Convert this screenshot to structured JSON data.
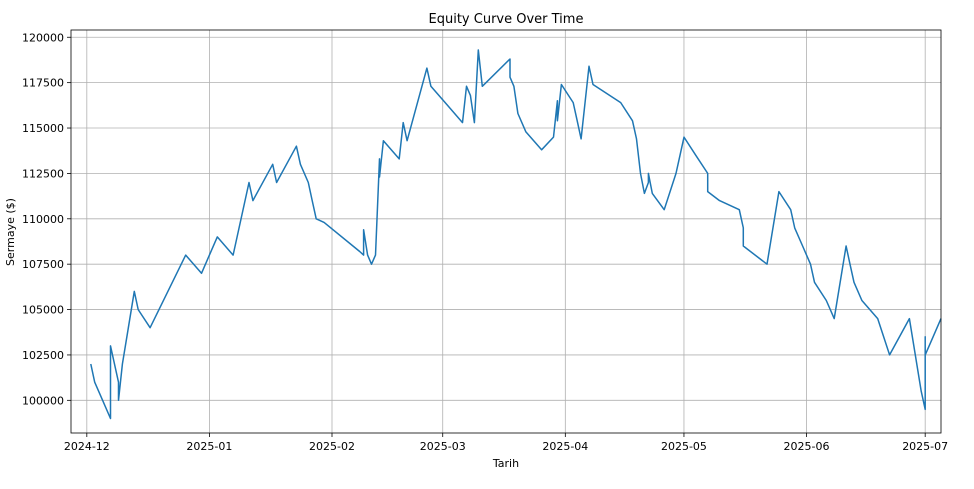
{
  "chart_data": {
    "type": "line",
    "title": "Equity Curve Over Time",
    "xlabel": "Tarih",
    "ylabel": "Sermaye ($)",
    "grid": true,
    "xlim": [
      "2024-11-27",
      "2025-07-05"
    ],
    "ylim": [
      98200,
      120400
    ],
    "xticks": [
      {
        "date": "2024-12-01",
        "label": "2024-12"
      },
      {
        "date": "2025-01-01",
        "label": "2025-01"
      },
      {
        "date": "2025-02-01",
        "label": "2025-02"
      },
      {
        "date": "2025-03-01",
        "label": "2025-03"
      },
      {
        "date": "2025-04-01",
        "label": "2025-04"
      },
      {
        "date": "2025-05-01",
        "label": "2025-05"
      },
      {
        "date": "2025-06-01",
        "label": "2025-06"
      },
      {
        "date": "2025-07-01",
        "label": "2025-07"
      }
    ],
    "yticks": [
      {
        "value": 100000,
        "label": "100000"
      },
      {
        "value": 102500,
        "label": "102500"
      },
      {
        "value": 105000,
        "label": "105000"
      },
      {
        "value": 107500,
        "label": "107500"
      },
      {
        "value": 110000,
        "label": "110000"
      },
      {
        "value": 112500,
        "label": "112500"
      },
      {
        "value": 115000,
        "label": "115000"
      },
      {
        "value": 117500,
        "label": "117500"
      },
      {
        "value": 120000,
        "label": "120000"
      }
    ],
    "series": [
      {
        "color": "#1f77b4",
        "points": [
          [
            "2024-12-02",
            102000
          ],
          [
            "2024-12-03",
            101000
          ],
          [
            "2024-12-05",
            100000
          ],
          [
            "2024-12-07",
            99000
          ],
          [
            "2024-12-07",
            103000
          ],
          [
            "2024-12-09",
            101000
          ],
          [
            "2024-12-09",
            100000
          ],
          [
            "2024-12-10",
            102000
          ],
          [
            "2024-12-13",
            106000
          ],
          [
            "2024-12-14",
            105000
          ],
          [
            "2024-12-17",
            104000
          ],
          [
            "2024-12-26",
            108000
          ],
          [
            "2024-12-30",
            107000
          ],
          [
            "2025-01-03",
            109000
          ],
          [
            "2025-01-07",
            108000
          ],
          [
            "2025-01-11",
            112000
          ],
          [
            "2025-01-12",
            111000
          ],
          [
            "2025-01-17",
            113000
          ],
          [
            "2025-01-18",
            112000
          ],
          [
            "2025-01-23",
            114000
          ],
          [
            "2025-01-24",
            113000
          ],
          [
            "2025-01-26",
            112000
          ],
          [
            "2025-01-27",
            111000
          ],
          [
            "2025-01-28",
            110000
          ],
          [
            "2025-01-30",
            109800
          ],
          [
            "2025-02-08",
            108200
          ],
          [
            "2025-02-09",
            108000
          ],
          [
            "2025-02-09",
            109400
          ],
          [
            "2025-02-10",
            108000
          ],
          [
            "2025-02-11",
            107500
          ],
          [
            "2025-02-12",
            108000
          ],
          [
            "2025-02-13",
            113300
          ],
          [
            "2025-02-13",
            112300
          ],
          [
            "2025-02-14",
            114300
          ],
          [
            "2025-02-18",
            113300
          ],
          [
            "2025-02-19",
            115300
          ],
          [
            "2025-02-20",
            114300
          ],
          [
            "2025-02-25",
            118300
          ],
          [
            "2025-02-26",
            117300
          ],
          [
            "2025-03-02",
            116300
          ],
          [
            "2025-03-06",
            115300
          ],
          [
            "2025-03-07",
            117300
          ],
          [
            "2025-03-08",
            116800
          ],
          [
            "2025-03-09",
            115300
          ],
          [
            "2025-03-10",
            119300
          ],
          [
            "2025-03-11",
            117300
          ],
          [
            "2025-03-18",
            118800
          ],
          [
            "2025-03-18",
            117800
          ],
          [
            "2025-03-19",
            117300
          ],
          [
            "2025-03-20",
            115800
          ],
          [
            "2025-03-22",
            114800
          ],
          [
            "2025-03-26",
            113800
          ],
          [
            "2025-03-29",
            114500
          ],
          [
            "2025-03-30",
            116500
          ],
          [
            "2025-03-30",
            115400
          ],
          [
            "2025-03-31",
            117400
          ],
          [
            "2025-04-03",
            116400
          ],
          [
            "2025-04-04",
            115400
          ],
          [
            "2025-04-05",
            114400
          ],
          [
            "2025-04-07",
            118400
          ],
          [
            "2025-04-08",
            117400
          ],
          [
            "2025-04-15",
            116400
          ],
          [
            "2025-04-18",
            115400
          ],
          [
            "2025-04-19",
            114400
          ],
          [
            "2025-04-20",
            112500
          ],
          [
            "2025-04-21",
            111400
          ],
          [
            "2025-04-22",
            112000
          ],
          [
            "2025-04-22",
            112500
          ],
          [
            "2025-04-23",
            111400
          ],
          [
            "2025-04-26",
            110500
          ],
          [
            "2025-04-29",
            112500
          ],
          [
            "2025-04-30",
            113500
          ],
          [
            "2025-05-01",
            114500
          ],
          [
            "2025-05-04",
            113500
          ],
          [
            "2025-05-07",
            112500
          ],
          [
            "2025-05-07",
            111500
          ],
          [
            "2025-05-10",
            111000
          ],
          [
            "2025-05-15",
            110500
          ],
          [
            "2025-05-16",
            109500
          ],
          [
            "2025-05-16",
            108500
          ],
          [
            "2025-05-22",
            107500
          ],
          [
            "2025-05-25",
            111500
          ],
          [
            "2025-05-28",
            110500
          ],
          [
            "2025-05-29",
            109500
          ],
          [
            "2025-05-31",
            108500
          ],
          [
            "2025-06-02",
            107500
          ],
          [
            "2025-06-03",
            106500
          ],
          [
            "2025-06-06",
            105500
          ],
          [
            "2025-06-08",
            104500
          ],
          [
            "2025-06-11",
            108500
          ],
          [
            "2025-06-12",
            107500
          ],
          [
            "2025-06-13",
            106500
          ],
          [
            "2025-06-15",
            105500
          ],
          [
            "2025-06-19",
            104500
          ],
          [
            "2025-06-22",
            102500
          ],
          [
            "2025-06-27",
            104500
          ],
          [
            "2025-06-30",
            100500
          ],
          [
            "2025-07-01",
            99500
          ],
          [
            "2025-07-01",
            103500
          ],
          [
            "2025-07-01",
            102500
          ],
          [
            "2025-07-03",
            103500
          ],
          [
            "2025-07-05",
            104500
          ]
        ]
      }
    ]
  }
}
